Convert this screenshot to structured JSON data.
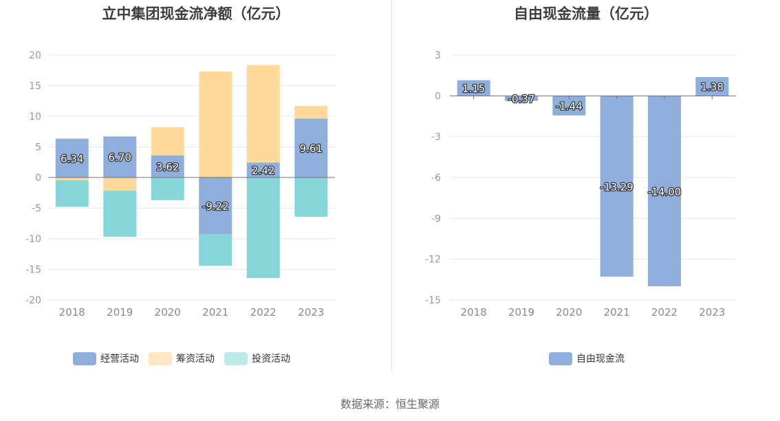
{
  "source_text": "数据来源：恒生聚源",
  "chart_data": [
    {
      "type": "bar",
      "stacked": true,
      "title": "立中集团现金流净额（亿元）",
      "categories": [
        "2018",
        "2019",
        "2020",
        "2021",
        "2022",
        "2023"
      ],
      "ylim": [
        -20,
        20
      ],
      "yticks": [
        20,
        15,
        10,
        5,
        0,
        -5,
        -10,
        -15,
        -20
      ],
      "legend_position": "bottom",
      "series": [
        {
          "name": "经营活动",
          "color": "#8eaedc",
          "legend_color": "#8eaedc",
          "labeled": true,
          "values": [
            6.34,
            6.7,
            3.62,
            -9.22,
            2.42,
            9.61
          ]
        },
        {
          "name": "筹资活动",
          "color": "#ffd99b",
          "legend_color": "#ffe6c2",
          "labeled": false,
          "values": [
            -0.45,
            -2.15,
            4.6,
            17.3,
            15.95,
            2.1
          ]
        },
        {
          "name": "投资活动",
          "color": "#86d5d9",
          "legend_color": "#bfe9ea",
          "labeled": false,
          "values": [
            -4.35,
            -7.55,
            -3.7,
            -5.2,
            -16.4,
            -6.4
          ]
        }
      ]
    },
    {
      "type": "bar",
      "title": "自由现金流量（亿元）",
      "categories": [
        "2018",
        "2019",
        "2020",
        "2021",
        "2022",
        "2023"
      ],
      "ylim": [
        -15,
        3
      ],
      "yticks": [
        3,
        0,
        -3,
        -6,
        -9,
        -12,
        -15
      ],
      "legend_position": "bottom",
      "series": [
        {
          "name": "自由现金流",
          "color": "#8eaedc",
          "legend_color": "#8eaedc",
          "labeled": true,
          "values": [
            1.15,
            -0.37,
            -1.44,
            -13.29,
            -14.0,
            1.38
          ]
        }
      ]
    }
  ]
}
